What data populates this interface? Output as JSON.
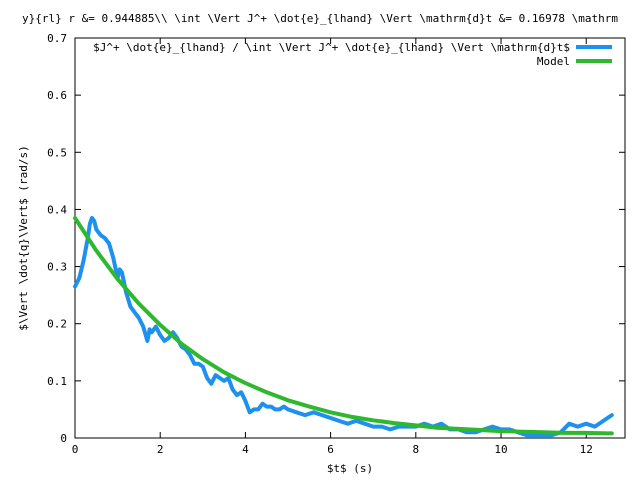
{
  "chart_data": {
    "type": "line",
    "title": "y}{rl} r &= 0.944885\\\\ \\int \\Vert J^+ \\dot{e}_{lhand} \\Vert \\mathrm{d}t &=  0.16978 \\mathrm",
    "xlabel": "$t$ (s)",
    "ylabel": "$\\Vert \\dot{q}\\Vert$ (rad/s)",
    "xlim": [
      0,
      12.91
    ],
    "ylim": [
      0,
      0.7
    ],
    "x_ticks": [
      0,
      2,
      4,
      6,
      8,
      10,
      12
    ],
    "y_ticks": [
      0,
      0.1,
      0.2,
      0.3,
      0.4,
      0.5,
      0.6,
      0.7
    ],
    "x_tick_labels": [
      "0",
      "2",
      "4",
      "6",
      "8",
      "10",
      "12"
    ],
    "y_tick_labels": [
      "0",
      "0.1",
      "0.2",
      "0.3",
      "0.4",
      "0.5",
      "0.6",
      "0.7"
    ],
    "grid": false,
    "legend_position": "top-right",
    "series": [
      {
        "name": "$J^+ \\dot{e}_{lhand} / \\int \\Vert J^+ \\dot{e}_{lhand} \\Vert \\mathrm{d}t$",
        "color": "#1e90ee",
        "x": [
          0,
          0.1,
          0.2,
          0.3,
          0.35,
          0.4,
          0.45,
          0.5,
          0.6,
          0.7,
          0.8,
          0.9,
          1.0,
          1.05,
          1.1,
          1.2,
          1.3,
          1.4,
          1.5,
          1.6,
          1.7,
          1.75,
          1.8,
          1.9,
          2.0,
          2.1,
          2.2,
          2.3,
          2.4,
          2.5,
          2.6,
          2.7,
          2.8,
          2.9,
          3.0,
          3.1,
          3.2,
          3.3,
          3.4,
          3.5,
          3.6,
          3.7,
          3.8,
          3.9,
          4.0,
          4.1,
          4.2,
          4.3,
          4.4,
          4.5,
          4.6,
          4.7,
          4.8,
          4.9,
          5.0,
          5.2,
          5.4,
          5.6,
          5.8,
          6.0,
          6.2,
          6.4,
          6.6,
          6.8,
          7.0,
          7.2,
          7.4,
          7.6,
          7.8,
          8.0,
          8.2,
          8.4,
          8.6,
          8.8,
          9.0,
          9.2,
          9.4,
          9.6,
          9.8,
          10.0,
          10.2,
          10.4,
          10.6,
          10.8,
          11.0,
          11.2,
          11.4,
          11.6,
          11.8,
          12.0,
          12.2,
          12.4,
          12.6
        ],
        "values": [
          0.265,
          0.28,
          0.31,
          0.35,
          0.375,
          0.385,
          0.38,
          0.365,
          0.355,
          0.35,
          0.34,
          0.315,
          0.28,
          0.295,
          0.29,
          0.255,
          0.23,
          0.22,
          0.21,
          0.195,
          0.17,
          0.19,
          0.185,
          0.195,
          0.18,
          0.17,
          0.175,
          0.185,
          0.175,
          0.16,
          0.155,
          0.145,
          0.13,
          0.13,
          0.125,
          0.105,
          0.095,
          0.11,
          0.105,
          0.1,
          0.105,
          0.085,
          0.075,
          0.08,
          0.065,
          0.045,
          0.05,
          0.05,
          0.06,
          0.055,
          0.055,
          0.05,
          0.05,
          0.055,
          0.05,
          0.045,
          0.04,
          0.045,
          0.04,
          0.035,
          0.03,
          0.025,
          0.03,
          0.025,
          0.02,
          0.02,
          0.015,
          0.02,
          0.02,
          0.02,
          0.025,
          0.02,
          0.025,
          0.015,
          0.015,
          0.01,
          0.01,
          0.015,
          0.02,
          0.015,
          0.015,
          0.01,
          0.005,
          0.005,
          0.005,
          0.005,
          0.01,
          0.025,
          0.02,
          0.025,
          0.02,
          0.03,
          0.04
        ]
      },
      {
        "name": "Model",
        "color": "#2db82d",
        "x": [
          0,
          0.5,
          1.0,
          1.5,
          2.0,
          2.5,
          3.0,
          3.5,
          4.0,
          4.5,
          5.0,
          5.5,
          6.0,
          6.5,
          7.0,
          7.5,
          8.0,
          8.5,
          9.0,
          9.5,
          10.0,
          10.5,
          11.0,
          11.5,
          12.0,
          12.5,
          12.6
        ],
        "values": [
          0.385,
          0.328,
          0.278,
          0.235,
          0.198,
          0.165,
          0.138,
          0.115,
          0.096,
          0.08,
          0.066,
          0.055,
          0.045,
          0.037,
          0.031,
          0.026,
          0.022,
          0.018,
          0.016,
          0.014,
          0.012,
          0.011,
          0.01,
          0.009,
          0.009,
          0.008,
          0.008
        ]
      }
    ]
  }
}
